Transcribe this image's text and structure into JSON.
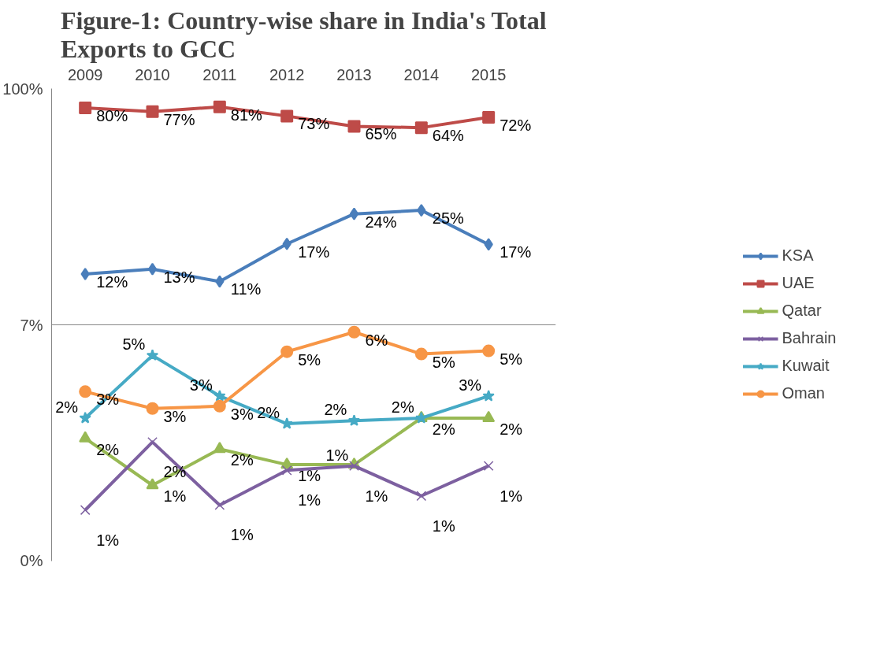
{
  "chart_data": {
    "type": "line",
    "title": "Figure-1: Country-wise share in India's Total Exports to GCC",
    "categories": [
      "2009",
      "2010",
      "2011",
      "2012",
      "2013",
      "2014",
      "2015"
    ],
    "log": true,
    "ylim": [
      0.49,
      100
    ],
    "yticks": [
      {
        "value": 0.49,
        "label": "0%"
      },
      {
        "value": 7,
        "label": "7%"
      },
      {
        "value": 100,
        "label": "100%"
      }
    ],
    "grid": "y",
    "legend": "right",
    "line_style": "solid",
    "series": [
      {
        "name": "KSA",
        "color": "#4a7ebb",
        "marker": "diamond",
        "values": [
          12.4,
          13.1,
          11.4,
          17.4,
          24.4,
          25.4,
          17.3
        ],
        "value_labels": [
          "12%",
          "13%",
          "11%",
          "17%",
          "24%",
          "25%",
          "17%"
        ]
      },
      {
        "name": "UAE",
        "color": "#be4b48",
        "marker": "square",
        "values": [
          80.4,
          77.2,
          81.4,
          73.4,
          65.4,
          64.4,
          72.4
        ],
        "value_labels": [
          "80%",
          "77%",
          "81%",
          "73%",
          "65%",
          "64%",
          "72%"
        ]
      },
      {
        "name": "Qatar",
        "color": "#98b954",
        "marker": "triangle",
        "values": [
          1.95,
          1.15,
          1.73,
          1.45,
          1.45,
          2.45,
          2.45
        ],
        "value_labels": [
          "2%",
          "1%",
          "2%",
          "1%",
          "1%",
          "2%",
          "2%"
        ]
      },
      {
        "name": "Bahrain",
        "color": "#7d60a0",
        "marker": "cross",
        "values": [
          0.87,
          1.87,
          0.92,
          1.36,
          1.43,
          1.02,
          1.43
        ],
        "value_labels": [
          "1%",
          "2%",
          "1%",
          "1%",
          "1%",
          "1%",
          "1%"
        ]
      },
      {
        "name": "Kuwait",
        "color": "#46aac5",
        "marker": "star",
        "values": [
          2.45,
          4.96,
          3.14,
          2.3,
          2.38,
          2.45,
          3.14
        ],
        "value_labels": [
          "2%",
          "5%",
          "3%",
          "2%",
          "2%",
          "2%",
          "3%"
        ]
      },
      {
        "name": "Oman",
        "color": "#f79646",
        "marker": "circle",
        "values": [
          3.3,
          2.73,
          2.8,
          5.17,
          6.45,
          5.04,
          5.22
        ],
        "value_labels": [
          "3%",
          "3%",
          "3%",
          "5%",
          "6%",
          "5%",
          "5%"
        ]
      }
    ]
  }
}
